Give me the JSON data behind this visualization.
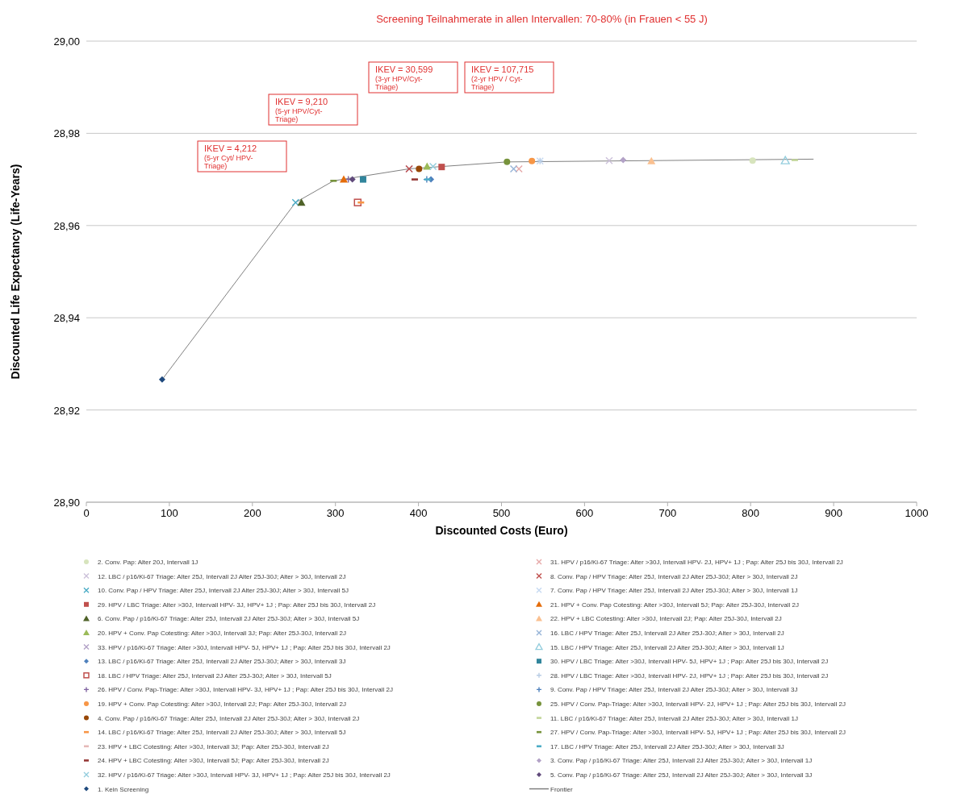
{
  "chart_data": {
    "type": "scatter",
    "title": "Screening Teilnahmerate in allen Intervallen: 70-80% (in Frauen < 55 J)",
    "xlabel": "Discounted Costs (Euro)",
    "ylabel": "Discounted Life Expectancy (Life-Years)",
    "xlim": [
      0,
      1000
    ],
    "xticks": [
      0,
      100,
      200,
      300,
      400,
      500,
      600,
      700,
      800,
      900,
      1000
    ],
    "ylim": [
      28.9,
      29.0
    ],
    "yticks": [
      {
        "value": 28.9,
        "label": "28,90"
      },
      {
        "value": 28.92,
        "label": "28,92"
      },
      {
        "value": 28.94,
        "label": "28,94"
      },
      {
        "value": 28.96,
        "label": "28,96"
      },
      {
        "value": 28.98,
        "label": "28,98"
      },
      {
        "value": 29.0,
        "label": "29,00"
      }
    ],
    "grid": "y",
    "legend": "bottom",
    "annotations": [
      "IKEV = 4,212 (5-yr Cyt/ HPV-Triage)",
      "IKEV = 9,210 (5-yr HPV/Cyt-Triage)",
      "IKEV = 30,599 (3-yr HPV/Cyt-Triage)",
      "IKEV = 107,715 (2-yr HPV / Cyt-Triage)"
    ],
    "series": [
      {
        "name": "2. Conv. Pap: Alter 20J, Intervall 1J",
        "color": "#d7e4bd",
        "marker": "circle",
        "x": [
          802.4
        ],
        "values": [
          28.9741
        ]
      },
      {
        "name": "12. LBC / p16/Ki-67 Triage: Alter 25J, Intervall 2J Alter 25J-30J; Alter > 30J, Intervall 2J",
        "color": "#ccc1da",
        "marker": "cross",
        "x": [
          629.7
        ],
        "values": [
          28.9741
        ]
      },
      {
        "name": "10. Conv. Pap / HPV Triage: Alter 25J, Intervall 2J Alter 25J-30J; Alter > 30J, Intervall 5J",
        "color": "#4bacc6",
        "marker": "cross",
        "x": [
          252
        ],
        "values": [
          28.965
        ]
      },
      {
        "name": "29. HPV / LBC Triage: Alter >30J, Intervall  HPV- 3J, HPV+ 1J ; Pap: Alter 25J bis 30J, Intervall 2J",
        "color": "#c0504d",
        "marker": "square",
        "x": [
          427.9
        ],
        "values": [
          28.9727
        ]
      },
      {
        "name": "6. Conv. Pap / p16/Ki-67 Triage: Alter 25J, Intervall 2J Alter 25J-30J; Alter > 30J, Intervall 5J",
        "color": "#4f6228",
        "marker": "triangle",
        "x": [
          259
        ],
        "values": [
          28.965
        ]
      },
      {
        "name": "20. HPV + Conv. Pap Cotesting: Alter >30J, Intervall 3J; Pap: Alter 25J-30J, Intervall 2J",
        "color": "#9bbb59",
        "marker": "triangle",
        "x": [
          410.4
        ],
        "values": [
          28.9728
        ]
      },
      {
        "name": "33. HPV / p16/Ki-67 Triage: Alter >30J, Intervall  HPV- 5J, HPV+ 1J ; Pap: Alter 25J bis 30J, Intervall 2J",
        "color": "#b3a2c7",
        "marker": "cross",
        "x": [
          388.8
        ],
        "values": [
          28.9723
        ]
      },
      {
        "name": "13. LBC / p16/Ki-67 Triage: Alter 25J, Intervall 2J Alter 25J-30J; Alter > 30J, Intervall 3J",
        "color": "#4f81bd",
        "marker": "diamond",
        "x": [
          415
        ],
        "values": [
          28.97
        ]
      },
      {
        "name": "18. LBC / HPV Triage: Alter 25J, Intervall 2J Alter 25J-30J; Alter > 30J, Intervall 5J",
        "color": "#c0504d",
        "marker": "square-open",
        "x": [
          326.8
        ],
        "values": [
          28.965
        ]
      },
      {
        "name": "26. HPV / Conv. Pap-Triage: Alter >30J, Intervall  HPV- 3J, HPV+ 1J ; Pap: Alter 25J bis 30J, Intervall 2J",
        "color": "#8064a2",
        "marker": "plus",
        "x": [
          315.5
        ],
        "values": [
          28.97
        ]
      },
      {
        "name": "19. HPV + Conv. Pap Cotesting: Alter >30J, Intervall 2J; Pap: Alter 25J-30J, Intervall 2J",
        "color": "#f79646",
        "marker": "circle",
        "x": [
          536.6
        ],
        "values": [
          28.974
        ]
      },
      {
        "name": "4. Conv. Pap / p16/Ki-67 Triage: Alter 25J, Intervall 2J Alter 25J-30J; Alter > 30J, Intervall 2J",
        "color": "#984807",
        "marker": "circle",
        "x": [
          400.7
        ],
        "values": [
          28.9723
        ]
      },
      {
        "name": "14. LBC / p16/Ki-67 Triage: Alter 25J, Intervall 2J Alter 25J-30J; Alter > 30J, Intervall 5J",
        "color": "#f79646",
        "x": [
          330.7
        ],
        "values": [
          28.965
        ]
      },
      {
        "name": "23. HPV + LBC Cotesting: Alter >30J, Intervall 3J; Pap: Alter 25J-30J, Intervall 2J",
        "color": "#e6b9b8",
        "x": [
          null
        ],
        "values": [
          null
        ]
      },
      {
        "name": "24. HPV + LBC Cotesting: Alter >30J, Intervall 5J; Pap: Alter 25J-30J, Intervall 2J",
        "color": "#953735",
        "x": [
          395.5
        ],
        "values": [
          28.97
        ]
      },
      {
        "name": "32. HPV / p16/Ki-67 Triage: Alter >30J, Intervall  HPV- 3J, HPV+ 1J ; Pap: Alter 25J bis 30J, Intervall 2J",
        "color": "#93cddd",
        "marker": "cross",
        "x": [
          417.5
        ],
        "values": [
          28.9728
        ]
      },
      {
        "name": "1. Kein Screening",
        "color": "#1f497d",
        "marker": "diamond",
        "x": [
          91.3
        ],
        "values": [
          28.9266
        ]
      },
      {
        "name": "31. HPV / p16/Ki-67 Triage: Alter >30J, Intervall  HPV- 2J, HPV+ 1J ; Pap: Alter 25J bis 30J, Intervall 2J",
        "color": "#e6a8a8",
        "marker": "cross",
        "x": [
          521
        ],
        "values": [
          28.9723
        ]
      },
      {
        "name": "8. Conv. Pap / HPV Triage: Alter 25J, Intervall 2J Alter 25J-30J; Alter > 30J, Intervall 2J",
        "color": "#c0504d",
        "marker": "cross",
        "x": [
          388.8
        ],
        "values": [
          28.9723
        ]
      },
      {
        "name": "7. Conv. Pap / HPV Triage: Alter 25J, Intervall 2J Alter 25J-30J; Alter > 30J, Intervall 1J",
        "color": "#c6d9f1",
        "marker": "cross",
        "x": [
          546.4
        ],
        "values": [
          28.974
        ]
      },
      {
        "name": "21. HPV + Conv. Pap Cotesting: Alter >30J, Intervall 5J; Pap: Alter 25J-30J, Intervall 2J",
        "color": "#e46c0a",
        "marker": "triangle",
        "x": [
          310
        ],
        "values": [
          28.97
        ]
      },
      {
        "name": "22. HPV + LBC Cotesting: Alter >30J, Intervall 2J; Pap: Alter 25J-30J, Intervall 2J",
        "color": "#fac090",
        "marker": "triangle",
        "x": [
          680.5
        ],
        "values": [
          28.974
        ]
      },
      {
        "name": "16. LBC / HPV Triage: Alter 25J, Intervall 2J Alter 25J-30J; Alter > 30J, Intervall 2J",
        "color": "#95b3d7",
        "marker": "cross",
        "x": [
          514.6
        ],
        "values": [
          28.9723
        ]
      },
      {
        "name": "15. LBC / HPV Triage: Alter 25J, Intervall 2J Alter 25J-30J; Alter > 30J, Intervall 1J",
        "color": "#93cddd",
        "marker": "triangle-open",
        "x": [
          841.8
        ],
        "values": [
          28.9741
        ]
      },
      {
        "name": "30. HPV / LBC Triage: Alter >30J, Intervall  HPV- 5J, HPV+ 1J ; Pap: Alter 25J bis 30J, Intervall 2J",
        "color": "#31859c",
        "marker": "square",
        "x": [
          333.3
        ],
        "values": [
          28.97
        ]
      },
      {
        "name": "28. HPV / LBC Triage: Alter >30J, Intervall  HPV- 2J, HPV+ 1J ; Pap: Alter 25J bis 30J, Intervall 2J",
        "color": "#b9cde5",
        "marker": "plus",
        "x": [
          546.4
        ],
        "values": [
          28.974
        ]
      },
      {
        "name": "9. Conv. Pap / HPV Triage: Alter 25J, Intervall 2J Alter 25J-30J; Alter > 30J, Intervall 3J",
        "color": "#4f81bd",
        "marker": "plus",
        "x": [
          410
        ],
        "values": [
          28.97
        ]
      },
      {
        "name": "25. HPV / Conv. Pap-Triage: Alter >30J, Intervall  HPV- 2J, HPV+ 1J ; Pap: Alter 25J bis 30J, Intervall 2J",
        "color": "#77933c",
        "marker": "circle",
        "x": [
          506.6
        ],
        "values": [
          28.9738
        ]
      },
      {
        "name": "11. LBC / p16/Ki-67 Triage: Alter 25J, Intervall 2J Alter 25J-30J; Alter > 30J, Intervall 1J",
        "color": "#c3d69b",
        "x": [
          853.2
        ],
        "values": [
          28.9742
        ]
      },
      {
        "name": "27. HPV / Conv. Pap-Triage: Alter >30J, Intervall  HPV- 5J, HPV+ 1J ; Pap: Alter 25J bis 30J, Intervall 2J",
        "color": "#77933c",
        "x": [
          297.7
        ],
        "values": [
          28.9697
        ]
      },
      {
        "name": "17. LBC / HPV Triage: Alter 25J, Intervall 2J Alter 25J-30J; Alter > 30J, Intervall 3J",
        "color": "#4bacc6",
        "x": [
          411
        ],
        "values": [
          28.97
        ]
      },
      {
        "name": "3. Conv. Pap / p16/Ki-67 Triage: Alter 25J, Intervall 2J Alter 25J-30J; Alter > 30J, Intervall 1J",
        "color": "#b3a2c7",
        "marker": "diamond",
        "x": [
          646.5
        ],
        "values": [
          28.9742
        ]
      },
      {
        "name": "5. Conv. Pap / p16/Ki-67 Triage: Alter 25J, Intervall 2J Alter 25J-30J; Alter > 30J, Intervall 3J",
        "color": "#604a7b",
        "marker": "diamond",
        "x": [
          320.4
        ],
        "values": [
          28.97
        ]
      },
      {
        "name": "Frontier",
        "type": "line",
        "color": "#808080",
        "marker": "none",
        "x": [
          91.3,
          252,
          297.7,
          388.8,
          506.6,
          875.8
        ],
        "values": [
          28.9266,
          28.965,
          28.9697,
          28.9723,
          28.9738,
          28.9744
        ]
      }
    ]
  }
}
